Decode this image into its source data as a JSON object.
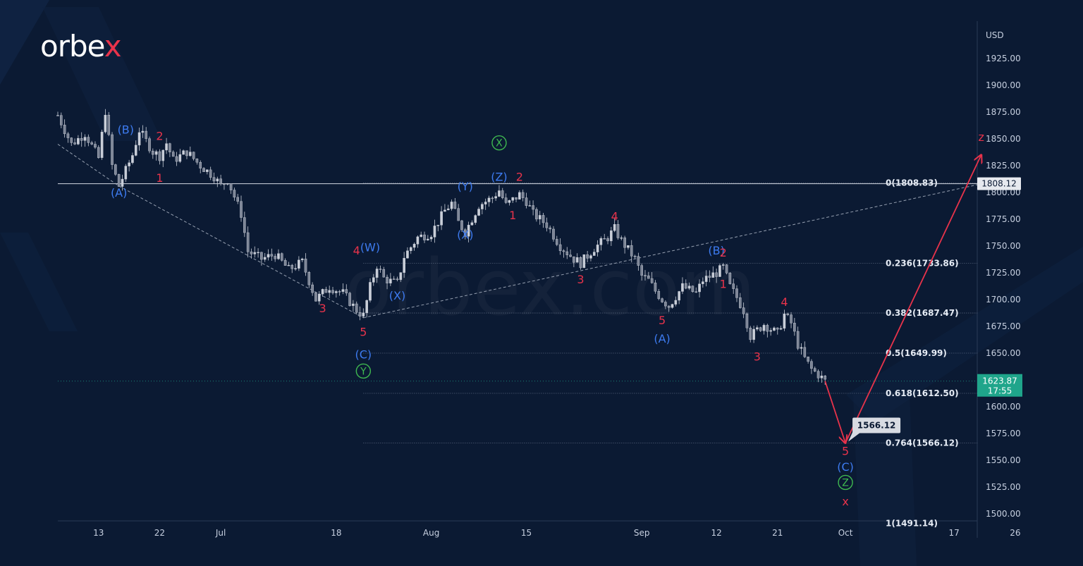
{
  "brand": {
    "name_main": "orbe",
    "name_x": "x",
    "x_color": "#e8334b",
    "watermark": "orbex.com"
  },
  "colors": {
    "background": "#0b1a33",
    "candle": "#c9ced8",
    "arrow": "#e8334b",
    "impulse_label": "#e8334b",
    "corrective_label": "#3d7bf0",
    "cycle_label": "#3fb950",
    "price_tag": "#1fa58b"
  },
  "chart_data": {
    "type": "candlestick",
    "currency": "USD",
    "ylim": [
      1490,
      1950
    ],
    "y_ticks": [
      1500,
      1525,
      1550,
      1575,
      1600,
      1625,
      1650,
      1675,
      1700,
      1725,
      1750,
      1775,
      1800,
      1825,
      1850,
      1875,
      1900,
      1925
    ],
    "y_tick_labels": [
      "1500.00",
      "1525.00",
      "1550.00",
      "1575.00",
      "1600.00",
      "1625.00",
      "1650.00",
      "1675.00",
      "1700.00",
      "1725.00",
      "1750.00",
      "1775.00",
      "1800.00",
      "1825.00",
      "1850.00",
      "1875.00",
      "1900.00",
      "1925.00"
    ],
    "x_range": [
      "2022-06-07",
      "2022-10-30"
    ],
    "x_ticks": [
      {
        "label": "13",
        "date": "2022-06-13"
      },
      {
        "label": "22",
        "date": "2022-06-22"
      },
      {
        "label": "Jul",
        "date": "2022-07-01"
      },
      {
        "label": "18",
        "date": "2022-07-18"
      },
      {
        "label": "Aug",
        "date": "2022-08-01"
      },
      {
        "label": "15",
        "date": "2022-08-15"
      },
      {
        "label": "Sep",
        "date": "2022-09-01"
      },
      {
        "label": "12",
        "date": "2022-09-12"
      },
      {
        "label": "21",
        "date": "2022-09-21"
      },
      {
        "label": "Oct",
        "date": "2022-10-01"
      },
      {
        "label": "17",
        "date": "2022-10-17"
      },
      {
        "label": "26",
        "date": "2022-10-26"
      }
    ],
    "price_path": [
      [
        "2022-06-07",
        1872
      ],
      [
        "2022-06-09",
        1845
      ],
      [
        "2022-06-11",
        1855
      ],
      [
        "2022-06-13",
        1832
      ],
      [
        "2022-06-14",
        1876
      ],
      [
        "2022-06-15",
        1825
      ],
      [
        "2022-06-16",
        1806
      ],
      [
        "2022-06-18",
        1835
      ],
      [
        "2022-06-19",
        1858
      ],
      [
        "2022-06-21",
        1838
      ],
      [
        "2022-06-22",
        1834
      ],
      [
        "2022-06-23",
        1846
      ],
      [
        "2022-06-24",
        1830
      ],
      [
        "2022-06-26",
        1838
      ],
      [
        "2022-06-28",
        1825
      ],
      [
        "2022-06-30",
        1815
      ],
      [
        "2022-07-01",
        1806
      ],
      [
        "2022-07-02",
        1812
      ],
      [
        "2022-07-04",
        1780
      ],
      [
        "2022-07-05",
        1745
      ],
      [
        "2022-07-07",
        1738
      ],
      [
        "2022-07-09",
        1742
      ],
      [
        "2022-07-11",
        1728
      ],
      [
        "2022-07-13",
        1735
      ],
      [
        "2022-07-15",
        1700
      ],
      [
        "2022-07-17",
        1712
      ],
      [
        "2022-07-19",
        1706
      ],
      [
        "2022-07-21",
        1690
      ],
      [
        "2022-07-22",
        1685
      ],
      [
        "2022-07-23",
        1712
      ],
      [
        "2022-07-24",
        1732
      ],
      [
        "2022-07-25",
        1720
      ],
      [
        "2022-07-26",
        1717
      ],
      [
        "2022-07-27",
        1715
      ],
      [
        "2022-07-28",
        1740
      ],
      [
        "2022-07-30",
        1758
      ],
      [
        "2022-08-01",
        1762
      ],
      [
        "2022-08-03",
        1783
      ],
      [
        "2022-08-04",
        1790
      ],
      [
        "2022-08-05",
        1772
      ],
      [
        "2022-08-06",
        1763
      ],
      [
        "2022-08-08",
        1788
      ],
      [
        "2022-08-10",
        1795
      ],
      [
        "2022-08-11",
        1802
      ],
      [
        "2022-08-12",
        1788
      ],
      [
        "2022-08-13",
        1793
      ],
      [
        "2022-08-14",
        1798
      ],
      [
        "2022-08-15",
        1792
      ],
      [
        "2022-08-16",
        1780
      ],
      [
        "2022-08-18",
        1770
      ],
      [
        "2022-08-20",
        1750
      ],
      [
        "2022-08-22",
        1738
      ],
      [
        "2022-08-23",
        1734
      ],
      [
        "2022-08-25",
        1748
      ],
      [
        "2022-08-27",
        1758
      ],
      [
        "2022-08-28",
        1766
      ],
      [
        "2022-08-29",
        1755
      ],
      [
        "2022-08-31",
        1738
      ],
      [
        "2022-09-01",
        1722
      ],
      [
        "2022-09-02",
        1718
      ],
      [
        "2022-09-03",
        1708
      ],
      [
        "2022-09-04",
        1700
      ],
      [
        "2022-09-05",
        1694
      ],
      [
        "2022-09-07",
        1712
      ],
      [
        "2022-09-09",
        1706
      ],
      [
        "2022-09-10",
        1718
      ],
      [
        "2022-09-12",
        1725
      ],
      [
        "2022-09-13",
        1730
      ],
      [
        "2022-09-14",
        1712
      ],
      [
        "2022-09-15",
        1702
      ],
      [
        "2022-09-16",
        1690
      ],
      [
        "2022-09-17",
        1666
      ],
      [
        "2022-09-19",
        1677
      ],
      [
        "2022-09-21",
        1668
      ],
      [
        "2022-09-22",
        1686
      ],
      [
        "2022-09-23",
        1678
      ],
      [
        "2022-09-24",
        1658
      ],
      [
        "2022-09-25",
        1645
      ],
      [
        "2022-09-26",
        1635
      ],
      [
        "2022-09-27",
        1630
      ],
      [
        "2022-09-28",
        1623.87
      ]
    ],
    "price_axis_unit": "USD",
    "last_price": {
      "value": 1623.87,
      "label": "1623.87",
      "countdown": "17:55"
    },
    "resistance": {
      "value": 1808.12,
      "label": "1808.12"
    },
    "fibonacci": [
      {
        "ratio": 0,
        "value": 1808.83,
        "label": "0(1808.83)"
      },
      {
        "ratio": 0.236,
        "value": 1733.86,
        "label": "0.236(1733.86)"
      },
      {
        "ratio": 0.382,
        "value": 1687.47,
        "label": "0.382(1687.47)"
      },
      {
        "ratio": 0.5,
        "value": 1649.99,
        "label": "0.5(1649.99)"
      },
      {
        "ratio": 0.618,
        "value": 1612.5,
        "label": "0.618(1612.50)"
      },
      {
        "ratio": 0.764,
        "value": 1566.12,
        "label": "0.764(1566.12)"
      },
      {
        "ratio": 1,
        "value": 1491.14,
        "label": "1(1491.14)"
      }
    ],
    "target": {
      "value": 1566.12,
      "label": "1566.12"
    },
    "trendlines": [
      {
        "from": [
          "2022-06-07",
          1845
        ],
        "to": [
          "2022-06-16",
          1806
        ]
      },
      {
        "from": [
          "2022-06-16",
          1806
        ],
        "to": [
          "2022-07-22",
          1683
        ]
      },
      {
        "from": [
          "2022-07-22",
          1683
        ],
        "to": [
          "2022-10-21",
          1808
        ]
      }
    ],
    "forecast_path": [
      [
        "2022-09-28",
        1623.87
      ],
      [
        "2022-10-01",
        1566.12
      ],
      [
        "2022-10-21",
        1835
      ]
    ],
    "wave_labels": [
      {
        "text": "(B)",
        "date": "2022-06-17",
        "price": 1855,
        "color": "blue"
      },
      {
        "text": "2",
        "date": "2022-06-22",
        "price": 1849,
        "color": "red"
      },
      {
        "text": "1",
        "date": "2022-06-22",
        "price": 1810,
        "color": "red"
      },
      {
        "text": "(A)",
        "date": "2022-06-16",
        "price": 1796,
        "color": "blue"
      },
      {
        "text": "4",
        "date": "2022-07-21",
        "price": 1742,
        "color": "red"
      },
      {
        "text": "(W)",
        "date": "2022-07-23",
        "price": 1745,
        "color": "blue"
      },
      {
        "text": "3",
        "date": "2022-07-16",
        "price": 1688,
        "color": "red"
      },
      {
        "text": "(X)",
        "date": "2022-07-27",
        "price": 1700,
        "color": "blue"
      },
      {
        "text": "5",
        "date": "2022-07-22",
        "price": 1666,
        "color": "red"
      },
      {
        "text": "(C)",
        "date": "2022-07-22",
        "price": 1645,
        "color": "blue"
      },
      {
        "text": "Y",
        "date": "2022-07-22",
        "price": 1630,
        "color": "green"
      },
      {
        "text": "(Y)",
        "date": "2022-08-06",
        "price": 1802,
        "color": "blue"
      },
      {
        "text": "(X)",
        "date": "2022-08-06",
        "price": 1757,
        "color": "blue"
      },
      {
        "text": "X",
        "date": "2022-08-11",
        "price": 1843,
        "color": "green"
      },
      {
        "text": "(Z)",
        "date": "2022-08-11",
        "price": 1811,
        "color": "blue"
      },
      {
        "text": "2",
        "date": "2022-08-14",
        "price": 1811,
        "color": "red"
      },
      {
        "text": "1",
        "date": "2022-08-13",
        "price": 1775,
        "color": "red"
      },
      {
        "text": "4",
        "date": "2022-08-28",
        "price": 1774,
        "color": "red"
      },
      {
        "text": "3",
        "date": "2022-08-23",
        "price": 1715,
        "color": "red"
      },
      {
        "text": "5",
        "date": "2022-09-04",
        "price": 1677,
        "color": "red"
      },
      {
        "text": "(A)",
        "date": "2022-09-04",
        "price": 1660,
        "color": "blue"
      },
      {
        "text": "(B)",
        "date": "2022-09-12",
        "price": 1742,
        "color": "blue"
      },
      {
        "text": "2",
        "date": "2022-09-13",
        "price": 1740,
        "color": "red"
      },
      {
        "text": "1",
        "date": "2022-09-13",
        "price": 1711,
        "color": "red"
      },
      {
        "text": "4",
        "date": "2022-09-22",
        "price": 1694,
        "color": "red"
      },
      {
        "text": "3",
        "date": "2022-09-18",
        "price": 1643,
        "color": "red"
      },
      {
        "text": "5",
        "date": "2022-10-01",
        "price": 1555,
        "color": "red"
      },
      {
        "text": "(C)",
        "date": "2022-10-01",
        "price": 1540,
        "color": "blue"
      },
      {
        "text": "Z",
        "date": "2022-10-01",
        "price": 1526,
        "color": "green"
      },
      {
        "text": "x",
        "date": "2022-10-01",
        "price": 1508,
        "color": "red"
      },
      {
        "text": "z",
        "date": "2022-10-21",
        "price": 1848,
        "color": "red"
      }
    ]
  }
}
